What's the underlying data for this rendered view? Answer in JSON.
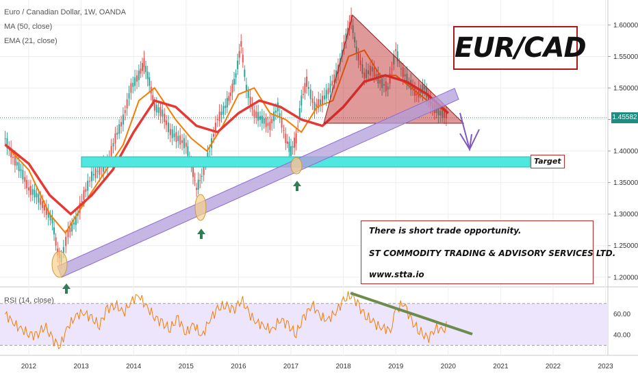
{
  "header": {
    "symbol": "Euro / Canadian Dollar, 1W, OANDA",
    "indicator_ma": "MA (50, close)",
    "indicator_ema": "EMA (21, close)",
    "rsi_label": "RSI (14, close)"
  },
  "annotations": {
    "title": "EUR/CAD",
    "note_line1": "There is short trade opportunity.",
    "note_line2": "ST COMMODITY TRADING & ADVISORY SERVICES LTD.",
    "note_line3": "www.stta.io",
    "target_label": "Target"
  },
  "last_price": "1.45582",
  "colors": {
    "ma50": "#e53935",
    "ema21": "#f57c00",
    "candle_up": "#26a69a",
    "candle_down": "#ef5350",
    "trend_channel": "#b39ddb",
    "target_zone": "#4ee8e0",
    "triangle": "#b71c1c",
    "rsi_line": "#f57c00",
    "rsi_band": "#ece5fb",
    "arrow_green": "#2e7d55",
    "projection_arrow": "#7e57c2",
    "rsi_trend": "#6d8b4a"
  },
  "chart_data": [
    {
      "type": "line",
      "name": "price",
      "x_ticks": [
        "2012",
        "2013",
        "2014",
        "2015",
        "2016",
        "2017",
        "2018",
        "2019",
        "2020",
        "2021",
        "2022",
        "2023"
      ],
      "y_ticks": [
        "1.60000",
        "1.55000",
        "1.50000",
        "1.45000",
        "1.40000",
        "1.35000",
        "1.30000",
        "1.25000",
        "1.20000"
      ],
      "y_range": [
        1.19,
        1.62
      ],
      "series": [
        {
          "name": "price",
          "x": [
            2011.55,
            2011.7,
            2011.85,
            2012.0,
            2012.15,
            2012.3,
            2012.45,
            2012.55,
            2012.62,
            2012.75,
            2012.9,
            2013.05,
            2013.2,
            2013.35,
            2013.5,
            2013.65,
            2013.8,
            2013.95,
            2014.1,
            2014.2,
            2014.3,
            2014.4,
            2014.55,
            2014.7,
            2014.85,
            2015.0,
            2015.1,
            2015.2,
            2015.3,
            2015.45,
            2015.6,
            2015.75,
            2015.85,
            2015.95,
            2016.05,
            2016.15,
            2016.3,
            2016.45,
            2016.6,
            2016.75,
            2016.9,
            2017.0,
            2017.1,
            2017.2,
            2017.3,
            2017.45,
            2017.6,
            2017.75,
            2017.9,
            2018.05,
            2018.15,
            2018.25,
            2018.4,
            2018.55,
            2018.7,
            2018.85,
            2019.0,
            2019.1,
            2019.25,
            2019.4,
            2019.55,
            2019.7,
            2019.85,
            2020.0
          ],
          "values": [
            1.42,
            1.39,
            1.37,
            1.34,
            1.33,
            1.31,
            1.29,
            1.24,
            1.23,
            1.27,
            1.29,
            1.33,
            1.36,
            1.37,
            1.38,
            1.42,
            1.45,
            1.5,
            1.52,
            1.54,
            1.51,
            1.47,
            1.46,
            1.43,
            1.42,
            1.41,
            1.38,
            1.34,
            1.36,
            1.4,
            1.45,
            1.47,
            1.49,
            1.52,
            1.57,
            1.5,
            1.46,
            1.45,
            1.44,
            1.47,
            1.42,
            1.4,
            1.42,
            1.48,
            1.51,
            1.47,
            1.48,
            1.5,
            1.53,
            1.58,
            1.61,
            1.56,
            1.52,
            1.53,
            1.51,
            1.5,
            1.56,
            1.53,
            1.51,
            1.49,
            1.5,
            1.47,
            1.46,
            1.4558
          ]
        },
        {
          "name": "MA (50, close)",
          "x": [
            2011.55,
            2012.0,
            2012.4,
            2012.8,
            2013.2,
            2013.6,
            2014.0,
            2014.4,
            2014.8,
            2015.2,
            2015.6,
            2016.0,
            2016.4,
            2016.8,
            2017.2,
            2017.6,
            2018.0,
            2018.4,
            2018.8,
            2019.2,
            2019.6,
            2020.0
          ],
          "values": [
            1.41,
            1.38,
            1.33,
            1.3,
            1.33,
            1.37,
            1.43,
            1.48,
            1.47,
            1.44,
            1.43,
            1.46,
            1.48,
            1.47,
            1.45,
            1.44,
            1.47,
            1.51,
            1.52,
            1.51,
            1.49,
            1.46
          ]
        },
        {
          "name": "EMA (21, close)",
          "x": [
            2011.55,
            2012.0,
            2012.4,
            2012.7,
            2013.0,
            2013.4,
            2013.8,
            2014.1,
            2014.4,
            2014.8,
            2015.1,
            2015.4,
            2015.7,
            2016.0,
            2016.3,
            2016.6,
            2016.9,
            2017.2,
            2017.5,
            2017.8,
            2018.1,
            2018.4,
            2018.7,
            2019.0,
            2019.3,
            2019.6,
            2020.0
          ],
          "values": [
            1.41,
            1.37,
            1.3,
            1.27,
            1.31,
            1.36,
            1.41,
            1.48,
            1.5,
            1.45,
            1.42,
            1.4,
            1.44,
            1.49,
            1.5,
            1.46,
            1.45,
            1.43,
            1.47,
            1.48,
            1.55,
            1.56,
            1.52,
            1.52,
            1.5,
            1.48,
            1.46
          ]
        }
      ]
    },
    {
      "type": "line",
      "name": "RSI",
      "y_ticks": [
        "60.00",
        "40.00"
      ],
      "y_range": [
        23,
        82
      ],
      "series": [
        {
          "name": "RSI (14, close)",
          "x": [
            2011.55,
            2011.7,
            2011.85,
            2012.0,
            2012.15,
            2012.3,
            2012.45,
            2012.6,
            2012.75,
            2012.9,
            2013.05,
            2013.2,
            2013.35,
            2013.5,
            2013.65,
            2013.8,
            2013.95,
            2014.1,
            2014.25,
            2014.4,
            2014.55,
            2014.7,
            2014.85,
            2015.0,
            2015.15,
            2015.3,
            2015.45,
            2015.6,
            2015.75,
            2015.9,
            2016.05,
            2016.2,
            2016.35,
            2016.5,
            2016.65,
            2016.8,
            2016.95,
            2017.1,
            2017.25,
            2017.4,
            2017.55,
            2017.7,
            2017.85,
            2018.0,
            2018.15,
            2018.3,
            2018.45,
            2018.6,
            2018.75,
            2018.9,
            2019.0,
            2019.15,
            2019.3,
            2019.45,
            2019.6,
            2019.75,
            2019.9,
            2020.0
          ],
          "values": [
            60,
            52,
            45,
            42,
            38,
            50,
            35,
            30,
            48,
            58,
            62,
            55,
            50,
            64,
            70,
            60,
            72,
            78,
            66,
            58,
            50,
            47,
            55,
            42,
            50,
            38,
            55,
            64,
            70,
            62,
            75,
            60,
            52,
            48,
            44,
            56,
            48,
            42,
            56,
            70,
            58,
            54,
            62,
            72,
            80,
            66,
            58,
            50,
            47,
            44,
            62,
            72,
            52,
            45,
            35,
            47,
            44,
            50
          ]
        }
      ]
    }
  ]
}
